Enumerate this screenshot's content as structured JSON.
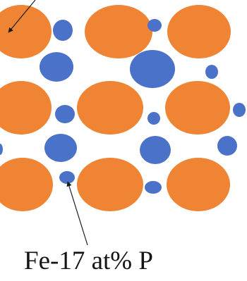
{
  "caption": "Fe-17 at% P",
  "colors": {
    "fe_atom": "#ef8434",
    "p_atom": "#4a72c8",
    "arrow": "#1a1a1a"
  }
}
